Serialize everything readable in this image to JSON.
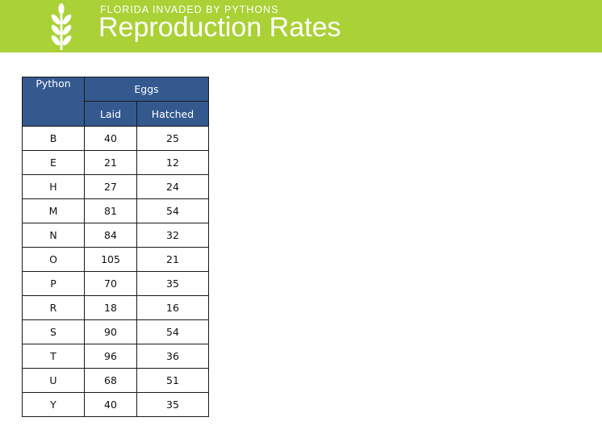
{
  "header": {
    "subtitle": "FLORIDA INVADED BY PYTHONS",
    "title": "Reproduction Rates",
    "logo_icon": "wheat-icon",
    "banner_color": "#aad136"
  },
  "table": {
    "header_color": "#34598f",
    "headers": {
      "python": "Python",
      "eggs": "Eggs",
      "laid": "Laid",
      "hatched": "Hatched"
    },
    "rows": [
      {
        "python": "B",
        "laid": "40",
        "hatched": "25"
      },
      {
        "python": "E",
        "laid": "21",
        "hatched": "12"
      },
      {
        "python": "H",
        "laid": "27",
        "hatched": "24"
      },
      {
        "python": "M",
        "laid": "81",
        "hatched": "54"
      },
      {
        "python": "N",
        "laid": "84",
        "hatched": "32"
      },
      {
        "python": "O",
        "laid": "105",
        "hatched": "21"
      },
      {
        "python": "P",
        "laid": "70",
        "hatched": "35"
      },
      {
        "python": "R",
        "laid": "18",
        "hatched": "16"
      },
      {
        "python": "S",
        "laid": "90",
        "hatched": "54"
      },
      {
        "python": "T",
        "laid": "96",
        "hatched": "36"
      },
      {
        "python": "U",
        "laid": "68",
        "hatched": "51"
      },
      {
        "python": "Y",
        "laid": "40",
        "hatched": "35"
      }
    ]
  }
}
